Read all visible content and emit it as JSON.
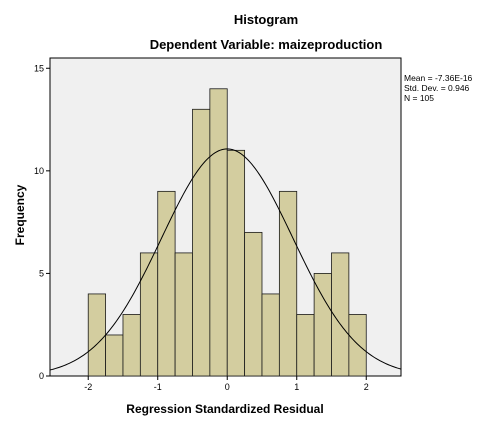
{
  "colors": {
    "plot_background": "#f0f0f0",
    "bar_fill": "#d3cd9f",
    "bar_stroke": "#1a1a1a",
    "curve": "#000000"
  },
  "chart_data": {
    "type": "bar",
    "title": "Histogram",
    "subtitle": "Dependent Variable: maizeproduction",
    "xlabel": "Regression Standardized Residual",
    "ylabel": "Frequency",
    "xlim": [
      -2.55,
      2.5
    ],
    "ylim": [
      0,
      15.5
    ],
    "x_ticks": [
      -2,
      -1,
      0,
      1,
      2
    ],
    "x_tick_labels": [
      "-2",
      "-1",
      "0",
      "1",
      "2"
    ],
    "y_ticks": [
      0,
      5,
      10,
      15
    ],
    "y_tick_labels": [
      "0",
      "5",
      "10",
      "15"
    ],
    "bin_width": 0.25,
    "bin_starts": [
      -2.0,
      -1.75,
      -1.5,
      -1.25,
      -1.0,
      -0.75,
      -0.5,
      -0.25,
      0.0,
      0.25,
      0.5,
      0.75,
      1.0,
      1.25,
      1.5,
      1.75
    ],
    "values": [
      4,
      2,
      3,
      6,
      9,
      6,
      13,
      14,
      11,
      7,
      4,
      9,
      3,
      5,
      6,
      3
    ],
    "normal_curve": {
      "mean": 0,
      "sd": 0.946,
      "n": 105
    },
    "grid": false,
    "stats_text": [
      "Mean = -7.36E-16",
      "Std. Dev. = 0.946",
      "N = 105"
    ]
  }
}
